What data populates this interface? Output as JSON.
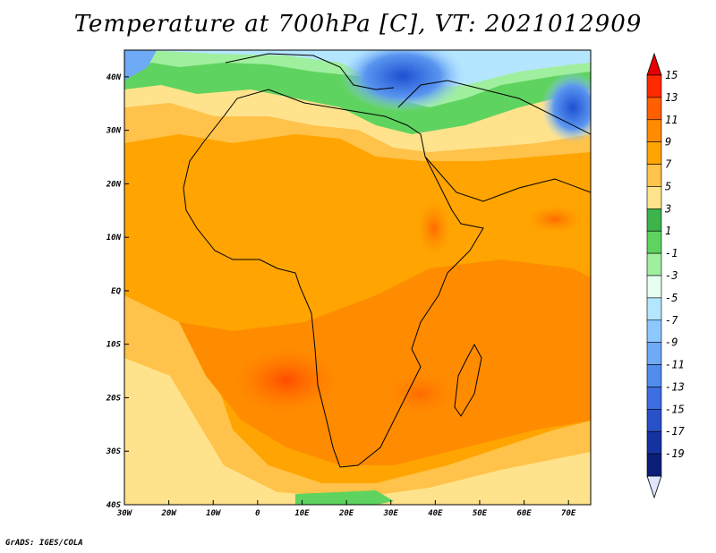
{
  "title": "Temperature at 700hPa [C], VT: 2021012909",
  "credit": "GrADS: IGES/COLA",
  "map": {
    "lon_range": [
      -30,
      75
    ],
    "lat_range": [
      -40,
      45
    ],
    "lat_ticks": [
      {
        "value": 40,
        "label": "40N"
      },
      {
        "value": 30,
        "label": "30N"
      },
      {
        "value": 20,
        "label": "20N"
      },
      {
        "value": 10,
        "label": "10N"
      },
      {
        "value": 0,
        "label": "EQ"
      },
      {
        "value": -10,
        "label": "10S"
      },
      {
        "value": -20,
        "label": "20S"
      },
      {
        "value": -30,
        "label": "30S"
      },
      {
        "value": -40,
        "label": "40S"
      }
    ],
    "lon_ticks": [
      {
        "value": -30,
        "label": "30W"
      },
      {
        "value": -20,
        "label": "20W"
      },
      {
        "value": -10,
        "label": "10W"
      },
      {
        "value": 0,
        "label": "0"
      },
      {
        "value": 10,
        "label": "10E"
      },
      {
        "value": 20,
        "label": "20E"
      },
      {
        "value": 30,
        "label": "30E"
      },
      {
        "value": 40,
        "label": "40E"
      },
      {
        "value": 50,
        "label": "50E"
      },
      {
        "value": 60,
        "label": "60E"
      },
      {
        "value": 70,
        "label": "70E"
      }
    ]
  },
  "colorbar": {
    "levels": [
      {
        "label": "15",
        "color": "#ff2a00"
      },
      {
        "label": "13",
        "color": "#ff5f00"
      },
      {
        "label": "11",
        "color": "#ff8c00"
      },
      {
        "label": "9",
        "color": "#ffa400"
      },
      {
        "label": "7",
        "color": "#ffc24a"
      },
      {
        "label": "5",
        "color": "#ffe38c"
      },
      {
        "label": "3",
        "color": "#3cb44b"
      },
      {
        "label": "1",
        "color": "#5fd35f"
      },
      {
        "label": "-1",
        "color": "#9fef9f"
      },
      {
        "label": "-3",
        "color": "#e6fff0"
      },
      {
        "label": "-5",
        "color": "#b4e6ff"
      },
      {
        "label": "-7",
        "color": "#8cc8ff"
      },
      {
        "label": "-9",
        "color": "#6eaaf5"
      },
      {
        "label": "-11",
        "color": "#508ceb"
      },
      {
        "label": "-13",
        "color": "#3c6ee1"
      },
      {
        "label": "-15",
        "color": "#2850c8"
      },
      {
        "label": "-17",
        "color": "#1432a0"
      },
      {
        "label": "-19",
        "color": "#0a1e78"
      }
    ],
    "top_color": "#e60000",
    "bottom_color": "#e0e6ff"
  }
}
